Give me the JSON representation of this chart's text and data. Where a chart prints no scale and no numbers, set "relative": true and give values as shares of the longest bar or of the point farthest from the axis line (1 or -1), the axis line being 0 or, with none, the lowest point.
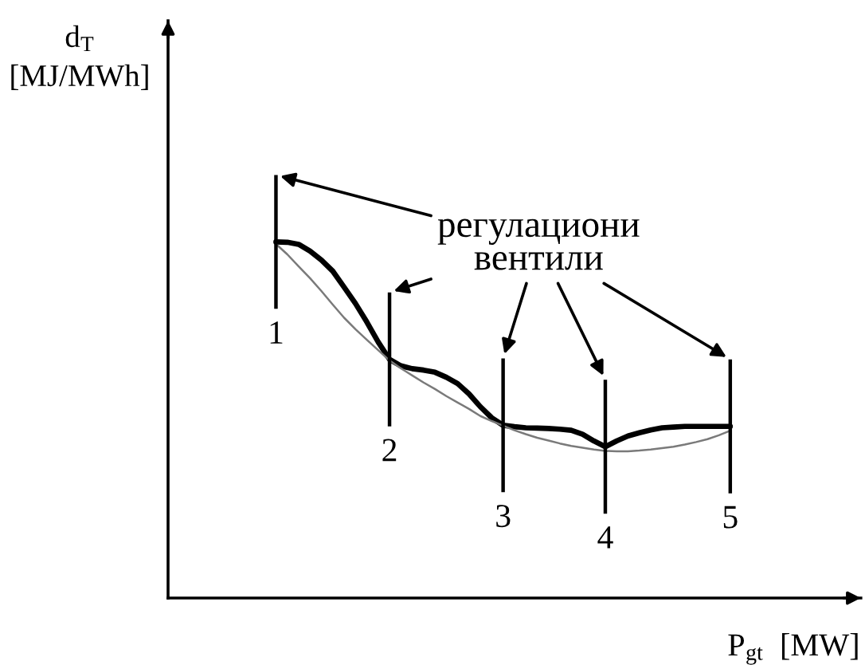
{
  "chart_data": {
    "type": "line",
    "relative": true,
    "xlabel": "P$_{gt}$  [MW]",
    "ylabel": "d$_{T}$\n[MJ/MWh]",
    "annotations": [
      "регулациони\nвентили"
    ],
    "categories": [
      null,
      null,
      null,
      null,
      null,
      null,
      null,
      null,
      null,
      "1",
      null,
      null,
      null,
      null,
      null,
      null,
      null,
      null,
      null,
      "2",
      null,
      null,
      null,
      null,
      null,
      null,
      null,
      null,
      null,
      "3",
      null,
      null,
      null,
      null,
      null,
      null,
      null,
      null,
      "4",
      null,
      null,
      null,
      null,
      null,
      null,
      null,
      null,
      null,
      null,
      "5",
      null,
      null,
      null,
      null,
      null,
      null,
      null,
      null,
      null,
      null,
      null
    ],
    "series": [
      {
        "color": "#000000",
        "values": [
          null,
          null,
          null,
          null,
          null,
          null,
          null,
          null,
          null,
          1.0,
          0.999,
          0.993,
          0.974,
          0.949,
          0.918,
          0.873,
          0.827,
          0.775,
          0.719,
          0.67,
          0.652,
          0.644,
          0.64,
          0.634,
          0.62,
          0.602,
          0.573,
          0.537,
          0.506,
          0.485,
          0.481,
          0.478,
          0.477,
          0.476,
          0.474,
          0.471,
          0.46,
          0.441,
          0.425,
          0.441,
          0.455,
          0.464,
          0.472,
          0.478,
          0.48,
          0.482,
          0.482,
          0.482,
          0.482,
          0.482,
          null,
          null,
          null,
          null,
          null,
          null,
          null,
          null,
          null,
          null,
          null
        ]
      },
      {
        "color": "#7a7a7a",
        "values": [
          null,
          null,
          null,
          null,
          null,
          null,
          null,
          null,
          null,
          0.994,
          0.965,
          0.931,
          0.898,
          0.862,
          0.824,
          0.787,
          0.755,
          0.725,
          0.696,
          0.667,
          0.645,
          0.625,
          0.605,
          0.587,
          0.567,
          0.549,
          0.531,
          0.511,
          0.497,
          0.484,
          0.471,
          0.46,
          0.45,
          0.442,
          0.434,
          0.427,
          0.422,
          0.417,
          0.413,
          0.412,
          0.412,
          0.414,
          0.417,
          0.421,
          0.425,
          0.431,
          0.438,
          0.446,
          0.457,
          0.47,
          null,
          null,
          null,
          null,
          null,
          null,
          null,
          null,
          null,
          null,
          null
        ]
      }
    ],
    "ref_lines": [
      {
        "axis": "x",
        "value": "1"
      },
      {
        "axis": "x",
        "value": "2"
      },
      {
        "axis": "x",
        "value": "3"
      },
      {
        "axis": "x",
        "value": "4"
      },
      {
        "axis": "x",
        "value": "5"
      }
    ]
  }
}
